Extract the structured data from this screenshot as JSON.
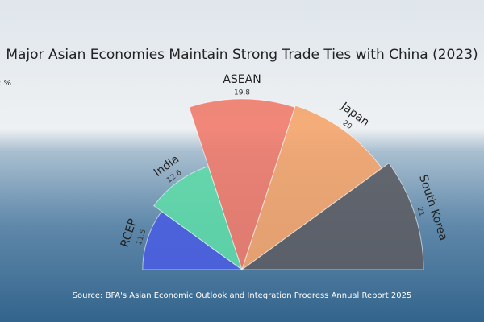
{
  "chart_data": {
    "type": "rose",
    "title": "Major Asian Economies Maintain Strong Trade Ties with China (2023)",
    "unit_label": "Unit: %",
    "categories": [
      "RCEP",
      "India",
      "ASEAN",
      "Japan",
      "South Korea"
    ],
    "values": [
      11.5,
      12.6,
      19.8,
      20,
      21
    ],
    "colors": [
      "#4a5ee0",
      "#5fd9a8",
      "#f07b6c",
      "#f4a46c",
      "#5c5d64"
    ],
    "rlim": [
      0,
      21
    ],
    "source": "Source: BFA's Asian Economic Outlook and Integration Progress Annual Report 2025"
  }
}
